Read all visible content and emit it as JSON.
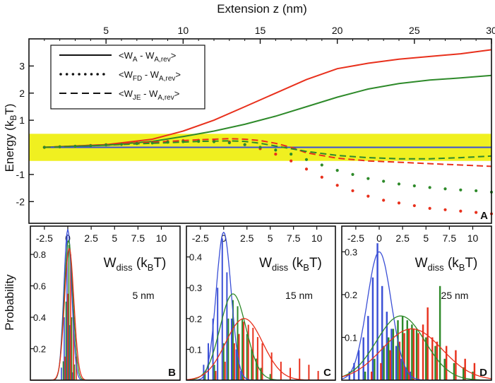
{
  "labels": {
    "x_top": "Extension z (nm)",
    "y_top_pre": "Energy (k",
    "y_top_sub": "B",
    "y_top_post": "T)",
    "y_bottom": "Probability"
  },
  "colors": {
    "red": "#e8301c",
    "green": "#2e8a2a",
    "blue": "#3a4fd6",
    "band": "#f0f020"
  },
  "chart_data": [
    {
      "type": "line",
      "panel_letter": "A",
      "xlabel": "Extension z (nm)",
      "ylabel": "Energy (kBT)",
      "xlim": [
        0,
        30
      ],
      "ylim": [
        -2.8,
        4.0
      ],
      "x_ticks": [
        "5",
        "10",
        "15",
        "20",
        "25",
        "30"
      ],
      "y_ticks": [
        "3",
        "2",
        "1",
        "-1",
        "-2"
      ],
      "band": [
        -0.5,
        0.5
      ],
      "legend": [
        {
          "style": "solid",
          "pre": "<W",
          "sub": "A",
          "mid": " - W",
          "sub2": "A,rev",
          "post": ">"
        },
        {
          "style": "dotted",
          "pre": "<W",
          "sub": "FD",
          "mid": " - W",
          "sub2": "A,rev",
          "post": ">"
        },
        {
          "style": "dashed",
          "pre": "<W",
          "sub": "JE",
          "mid": " - W",
          "sub2": "A,rev",
          "post": ">"
        }
      ],
      "series": [
        {
          "color": "red",
          "style": "solid",
          "x": [
            1,
            5,
            8,
            10,
            12,
            14,
            16,
            18,
            20,
            22,
            24,
            26,
            28,
            30
          ],
          "y": [
            0,
            0.1,
            0.3,
            0.6,
            1.0,
            1.5,
            2.0,
            2.5,
            2.9,
            3.1,
            3.25,
            3.35,
            3.45,
            3.6
          ]
        },
        {
          "color": "green",
          "style": "solid",
          "x": [
            1,
            5,
            8,
            10,
            12,
            14,
            16,
            18,
            20,
            22,
            24,
            26,
            28,
            30
          ],
          "y": [
            0,
            0.08,
            0.22,
            0.4,
            0.6,
            0.85,
            1.15,
            1.5,
            1.85,
            2.15,
            2.35,
            2.48,
            2.56,
            2.65
          ]
        },
        {
          "color": "blue",
          "style": "solid",
          "x": [
            1,
            30
          ],
          "y": [
            0,
            0
          ]
        },
        {
          "color": "red",
          "style": "dashed",
          "x": [
            1,
            3,
            5,
            7,
            9,
            11,
            13,
            14,
            15,
            16,
            17,
            18,
            20,
            22,
            24,
            26,
            28,
            30
          ],
          "y": [
            0,
            0.05,
            0.1,
            0.16,
            0.22,
            0.28,
            0.32,
            0.3,
            0.25,
            0.15,
            0,
            -0.2,
            -0.4,
            -0.5,
            -0.55,
            -0.6,
            -0.65,
            -0.7
          ]
        },
        {
          "color": "green",
          "style": "dashed",
          "x": [
            1,
            3,
            5,
            7,
            9,
            11,
            13,
            14,
            15,
            16,
            17,
            18,
            20,
            22,
            24,
            26,
            28,
            30
          ],
          "y": [
            0,
            0.04,
            0.08,
            0.13,
            0.17,
            0.22,
            0.24,
            0.22,
            0.15,
            0.05,
            -0.05,
            -0.15,
            -0.3,
            -0.38,
            -0.42,
            -0.42,
            -0.38,
            -0.32
          ]
        },
        {
          "color": "red",
          "style": "dotted",
          "x": [
            1,
            2,
            3,
            4,
            5,
            6,
            7,
            8,
            9,
            10,
            11,
            12,
            13,
            14,
            15,
            16,
            17,
            18,
            19,
            20,
            21,
            22,
            23,
            24,
            25,
            26,
            27,
            28,
            29,
            30
          ],
          "y": [
            0,
            0.02,
            0.04,
            0.07,
            0.1,
            0.13,
            0.16,
            0.19,
            0.22,
            0.25,
            0.26,
            0.25,
            0.2,
            0.1,
            -0.05,
            -0.25,
            -0.5,
            -0.8,
            -1.1,
            -1.4,
            -1.6,
            -1.8,
            -1.95,
            -2.05,
            -2.15,
            -2.25,
            -2.3,
            -2.35,
            -2.4,
            -2.45
          ]
        },
        {
          "color": "green",
          "style": "dotted",
          "x": [
            1,
            2,
            3,
            4,
            5,
            6,
            7,
            8,
            9,
            10,
            11,
            12,
            13,
            14,
            15,
            16,
            17,
            18,
            19,
            20,
            21,
            22,
            23,
            24,
            25,
            26,
            27,
            28,
            29,
            30
          ],
          "y": [
            0,
            0.02,
            0.04,
            0.06,
            0.09,
            0.11,
            0.14,
            0.16,
            0.19,
            0.21,
            0.22,
            0.21,
            0.17,
            0.1,
            0,
            -0.1,
            -0.25,
            -0.45,
            -0.65,
            -0.85,
            -1.0,
            -1.15,
            -1.25,
            -1.35,
            -1.42,
            -1.48,
            -1.53,
            -1.57,
            -1.6,
            -1.65
          ]
        }
      ]
    },
    {
      "type": "bar",
      "panel_letter": "B",
      "title_pre": "W",
      "title_sub": "diss",
      "title_post": " (k",
      "title_sub2": "B",
      "title_post2": "T)",
      "annotation": "5 nm",
      "xlim": [
        -4,
        12
      ],
      "ylim": [
        0,
        0.98
      ],
      "x_ticks": [
        "-2.5",
        "0",
        "2.5",
        "5",
        "7.5",
        "10"
      ],
      "y_ticks": [
        "0.8",
        "0.6",
        "0.4",
        "0.2"
      ],
      "bin_width": 0.28,
      "series": [
        {
          "color": "blue",
          "mean": 0.0,
          "sd": 0.42,
          "peak": 0.96,
          "bins": [
            [
              -0.6,
              0.08
            ],
            [
              -0.3,
              0.4
            ],
            [
              0.0,
              0.93
            ],
            [
              0.3,
              0.35
            ],
            [
              0.6,
              0.05
            ]
          ]
        },
        {
          "color": "green",
          "mean": 0.08,
          "sd": 0.46,
          "peak": 0.89,
          "bins": [
            [
              -0.5,
              0.12
            ],
            [
              -0.2,
              0.5
            ],
            [
              0.1,
              0.86
            ],
            [
              0.4,
              0.4
            ],
            [
              0.7,
              0.1
            ]
          ]
        },
        {
          "color": "red",
          "mean": 0.15,
          "sd": 0.5,
          "peak": 0.84,
          "bins": [
            [
              -0.4,
              0.15
            ],
            [
              -0.1,
              0.55
            ],
            [
              0.2,
              0.8
            ],
            [
              0.5,
              0.45
            ],
            [
              0.8,
              0.15
            ]
          ]
        }
      ]
    },
    {
      "type": "bar",
      "panel_letter": "C",
      "title_pre": "W",
      "title_sub": "diss",
      "title_post": " (k",
      "title_sub2": "B",
      "title_post2": "T)",
      "annotation": "15 nm",
      "xlim": [
        -4,
        12
      ],
      "ylim": [
        0,
        0.5
      ],
      "x_ticks": [
        "-2.5",
        "0",
        "2.5",
        "5",
        "7.5",
        "10"
      ],
      "y_ticks": [
        "0.4",
        "0.3",
        "0.2",
        "0.1"
      ],
      "bin_width": 0.45,
      "series": [
        {
          "color": "blue",
          "mean": 0.0,
          "sd": 0.8,
          "peak": 0.48,
          "bins": [
            [
              -2,
              0.05
            ],
            [
              -1.5,
              0.12
            ],
            [
              -1,
              0.2
            ],
            [
              -0.5,
              0.3
            ],
            [
              0,
              0.46
            ],
            [
              0.5,
              0.35
            ],
            [
              1,
              0.2
            ],
            [
              1.5,
              0.1
            ],
            [
              2,
              0.03
            ]
          ]
        },
        {
          "color": "green",
          "mean": 1.0,
          "sd": 1.4,
          "peak": 0.28,
          "bins": [
            [
              -2,
              0.02
            ],
            [
              -1,
              0.05
            ],
            [
              0,
              0.12
            ],
            [
              0.5,
              0.2
            ],
            [
              1,
              0.26
            ],
            [
              1.5,
              0.24
            ],
            [
              2,
              0.2
            ],
            [
              2.5,
              0.15
            ],
            [
              3,
              0.1
            ],
            [
              3.5,
              0.07
            ],
            [
              4,
              0.04
            ],
            [
              5,
              0.02
            ]
          ]
        },
        {
          "color": "red",
          "mean": 2.2,
          "sd": 2.0,
          "peak": 0.2,
          "bins": [
            [
              -1,
              0.03
            ],
            [
              0,
              0.06
            ],
            [
              1,
              0.12
            ],
            [
              1.5,
              0.15
            ],
            [
              2,
              0.19
            ],
            [
              2.5,
              0.18
            ],
            [
              3,
              0.17
            ],
            [
              3.5,
              0.14
            ],
            [
              4,
              0.12
            ],
            [
              5,
              0.09
            ],
            [
              6,
              0.06
            ],
            [
              7,
              0.04
            ],
            [
              8,
              0.07
            ],
            [
              9,
              0.05
            ],
            [
              10,
              0.03
            ]
          ]
        }
      ]
    },
    {
      "type": "bar",
      "panel_letter": "D",
      "title_pre": "W",
      "title_sub": "diss",
      "title_post": " (k",
      "title_sub2": "B",
      "title_post2": "T)",
      "annotation": "25 nm",
      "xlim": [
        -4,
        12
      ],
      "ylim": [
        0,
        0.36
      ],
      "x_ticks": [
        "-2.5",
        "0",
        "2.5",
        "5",
        "7.5",
        "10"
      ],
      "y_ticks": [
        "0.3",
        "0.2",
        "0.1"
      ],
      "bin_width": 0.55,
      "series": [
        {
          "color": "blue",
          "mean": 0.0,
          "sd": 1.3,
          "peak": 0.3,
          "bins": [
            [
              -3,
              0.02
            ],
            [
              -2.5,
              0.04
            ],
            [
              -2,
              0.07
            ],
            [
              -1.5,
              0.1
            ],
            [
              -1,
              0.15
            ],
            [
              -0.5,
              0.24
            ],
            [
              0,
              0.32
            ],
            [
              0.5,
              0.22
            ],
            [
              1,
              0.16
            ],
            [
              1.5,
              0.12
            ],
            [
              2,
              0.08
            ],
            [
              2.5,
              0.05
            ],
            [
              3,
              0.03
            ],
            [
              3.5,
              0.02
            ]
          ]
        },
        {
          "color": "green",
          "mean": 2.3,
          "sd": 2.6,
          "peak": 0.15,
          "bins": [
            [
              -1.5,
              0.02
            ],
            [
              -0.5,
              0.05
            ],
            [
              0.5,
              0.08
            ],
            [
              1,
              0.1
            ],
            [
              1.5,
              0.12
            ],
            [
              2,
              0.14
            ],
            [
              2.5,
              0.15
            ],
            [
              3,
              0.14
            ],
            [
              3.5,
              0.13
            ],
            [
              4,
              0.12
            ],
            [
              5,
              0.1
            ],
            [
              6,
              0.08
            ],
            [
              6.5,
              0.22
            ],
            [
              7,
              0.05
            ],
            [
              8,
              0.04
            ],
            [
              9,
              0.03
            ],
            [
              10,
              0.02
            ]
          ]
        },
        {
          "color": "red",
          "mean": 3.5,
          "sd": 3.2,
          "peak": 0.12,
          "bins": [
            [
              -1,
              0.02
            ],
            [
              0,
              0.04
            ],
            [
              1,
              0.07
            ],
            [
              2,
              0.09
            ],
            [
              2.5,
              0.11
            ],
            [
              3,
              0.12
            ],
            [
              3.5,
              0.12
            ],
            [
              4,
              0.11
            ],
            [
              4.5,
              0.13
            ],
            [
              5,
              0.17
            ],
            [
              5.5,
              0.1
            ],
            [
              6,
              0.09
            ],
            [
              7,
              0.08
            ],
            [
              8,
              0.07
            ],
            [
              9,
              0.05
            ],
            [
              10,
              0.04
            ]
          ]
        }
      ]
    }
  ]
}
